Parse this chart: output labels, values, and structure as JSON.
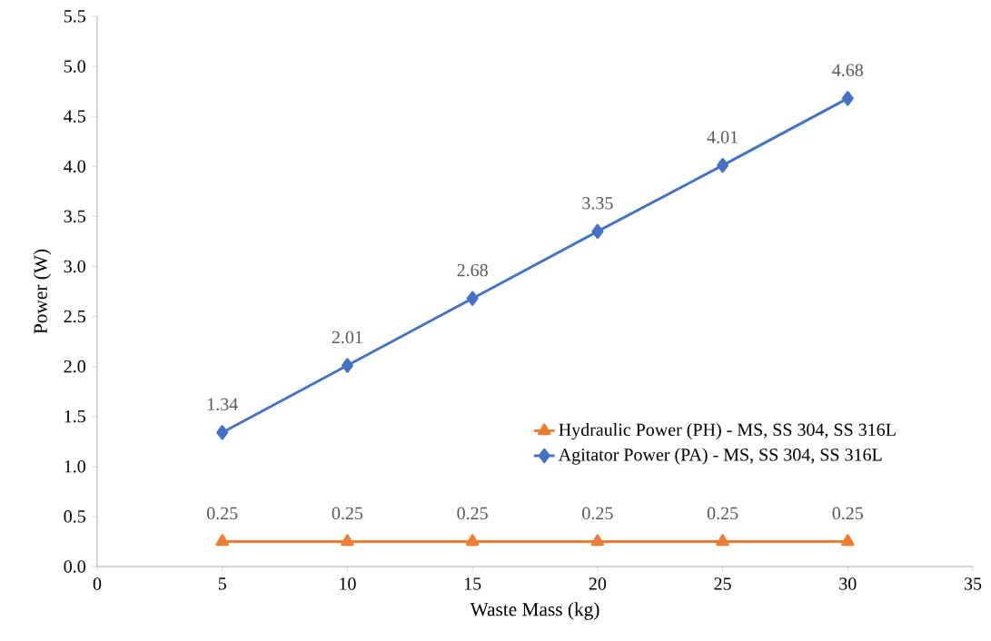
{
  "chart_data": {
    "type": "line",
    "xlabel": "Waste Mass (kg)",
    "ylabel": "Power (W)",
    "xlim": [
      0,
      35
    ],
    "xticks": [
      0,
      5,
      10,
      15,
      20,
      25,
      30,
      35
    ],
    "ylim": [
      0,
      5.5
    ],
    "yticks": [
      {
        "value": 0,
        "label": "0.0"
      },
      {
        "value": 0.5,
        "label": "0.5"
      },
      {
        "value": 1,
        "label": "1.0"
      },
      {
        "value": 1.5,
        "label": "1.5"
      },
      {
        "value": 2,
        "label": "2.0"
      },
      {
        "value": 2.5,
        "label": "2.5"
      },
      {
        "value": 3,
        "label": "3.0"
      },
      {
        "value": 3.5,
        "label": "3.5"
      },
      {
        "value": 4,
        "label": "4.0"
      },
      {
        "value": 4.5,
        "label": "4.5"
      },
      {
        "value": 5,
        "label": "5.0"
      },
      {
        "value": 5.5,
        "label": "5.5"
      }
    ],
    "x": [
      5,
      10,
      15,
      20,
      25,
      30
    ],
    "series": [
      {
        "name": "Hydraulic Power (PH) - MS, SS 304, SS 316L",
        "color": "#ed7d31",
        "marker": "triangle",
        "values": [
          0.25,
          0.25,
          0.25,
          0.25,
          0.25,
          0.25
        ]
      },
      {
        "name": "Agitator Power (PA) - MS, SS 304, SS 316L",
        "color": "#4472c4",
        "marker": "diamond",
        "values": [
          1.34,
          2.01,
          2.68,
          3.35,
          4.01,
          4.68
        ]
      }
    ],
    "data_labels": true,
    "grid": false,
    "legend": "right",
    "line_style": "solid"
  }
}
